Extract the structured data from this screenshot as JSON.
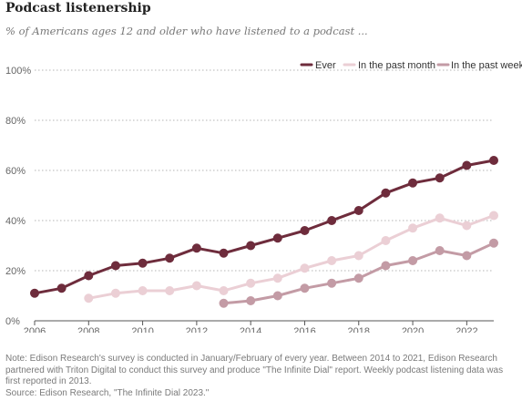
{
  "title": "Podcast listenership",
  "subtitle": "% of Americans ages 12 and older who have listened to a podcast ...",
  "note": "Note: Edison Research's survey is conducted in January/February of every year. Between 2014 to 2021, Edison Research partnered with Triton Digital to conduct this survey and produce \"The Infinite Dial\" report. Weekly podcast listening data was first reported in 2013.",
  "source": "Source: Edison Research, \"The Infinite Dial 2023.\"",
  "chart_data": {
    "type": "line",
    "xlim": [
      2006,
      2023
    ],
    "ylim": [
      0,
      100
    ],
    "x_ticks": [
      2006,
      2008,
      2010,
      2012,
      2014,
      2016,
      2018,
      2020,
      2022
    ],
    "y_ticks": [
      0,
      20,
      40,
      60,
      80,
      100
    ],
    "y_tick_labels": [
      "0%",
      "20%",
      "40%",
      "60%",
      "80%",
      "100%"
    ],
    "legend_position": "top-right",
    "series": [
      {
        "name": "Ever",
        "color": "#6e2c3c",
        "x": [
          2006,
          2007,
          2008,
          2009,
          2010,
          2011,
          2012,
          2013,
          2014,
          2015,
          2016,
          2017,
          2018,
          2019,
          2020,
          2021,
          2022,
          2023
        ],
        "values": [
          11,
          13,
          18,
          22,
          23,
          25,
          29,
          27,
          30,
          33,
          36,
          40,
          44,
          51,
          55,
          57,
          62,
          64
        ]
      },
      {
        "name": "In the past month",
        "color": "#ebcfd5",
        "x": [
          2008,
          2009,
          2010,
          2011,
          2012,
          2013,
          2014,
          2015,
          2016,
          2017,
          2018,
          2019,
          2020,
          2021,
          2022,
          2023
        ],
        "values": [
          9,
          11,
          12,
          12,
          14,
          12,
          15,
          17,
          21,
          24,
          26,
          32,
          37,
          41,
          38,
          42
        ]
      },
      {
        "name": "In the past week",
        "color": "#c39ba5",
        "x": [
          2013,
          2014,
          2015,
          2016,
          2017,
          2018,
          2019,
          2020,
          2021,
          2022,
          2023
        ],
        "values": [
          7,
          8,
          10,
          13,
          15,
          17,
          22,
          24,
          28,
          26,
          31
        ]
      }
    ]
  }
}
